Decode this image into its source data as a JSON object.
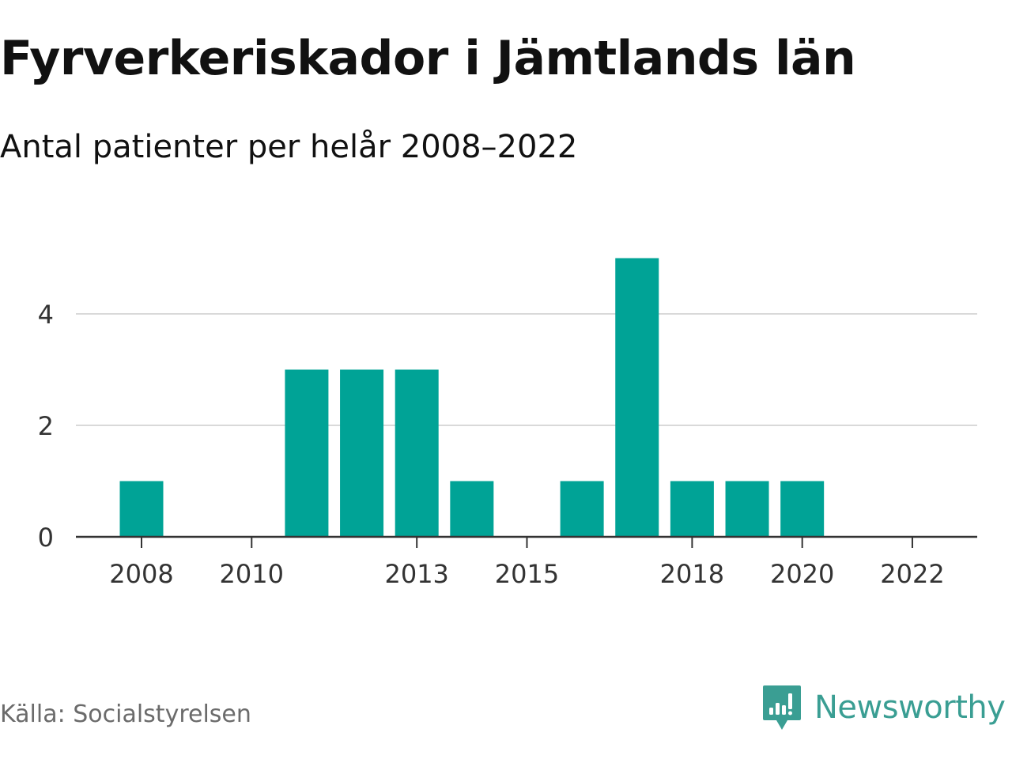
{
  "header": {
    "title": "Fyrverkeriskador i Jämtlands län",
    "subtitle": "Antal patienter per helår 2008–2022"
  },
  "footer": {
    "source": "Källa: Socialstyrelsen",
    "brand": "Newsworthy"
  },
  "colors": {
    "bar": "#00a396",
    "grid": "#d9d9d9",
    "axis": "#333333",
    "tick_text": "#333333",
    "brand": "#3a9e93"
  },
  "icons": {
    "brand_logo": "bar-chart-speech-bubble-icon"
  },
  "chart_data": {
    "type": "bar",
    "title": "Fyrverkeriskador i Jämtlands län",
    "subtitle": "Antal patienter per helår 2008–2022",
    "xlabel": "",
    "ylabel": "",
    "categories": [
      "2008",
      "2009",
      "2010",
      "2011",
      "2012",
      "2013",
      "2014",
      "2015",
      "2016",
      "2017",
      "2018",
      "2019",
      "2020",
      "2021",
      "2022"
    ],
    "values": [
      1,
      0,
      0,
      3,
      3,
      3,
      1,
      0,
      1,
      5,
      1,
      1,
      1,
      0,
      0
    ],
    "x_tick_labels": [
      "2008",
      "2010",
      "2013",
      "2015",
      "2018",
      "2020",
      "2022"
    ],
    "y_ticks": [
      0,
      2,
      4
    ],
    "ylim": [
      0,
      5
    ],
    "grid": true,
    "legend": "none"
  }
}
